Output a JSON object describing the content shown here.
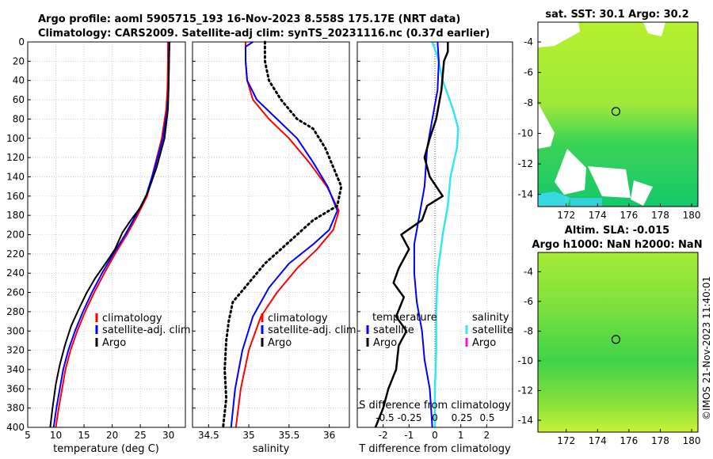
{
  "header": {
    "line1": "Argo profile: aoml 5905715_193 16-Nov-2023 8.558S 175.17E (NRT data)",
    "line2": "Climatology: CARS2009. Satellite-adj clim: synTS_20231116.nc (0.37d earlier)"
  },
  "side_stamp": "©IMOS 21-Nov-2023 11:40:01",
  "colors": {
    "climatology": "#ff0000",
    "satellite_adj": "#0000ff",
    "argo": "#000000",
    "sal_satellite": "#33e6f0",
    "sal_argo": "#ff00ff",
    "grid": "#b0b0b0"
  },
  "chart_data": [
    {
      "id": "temperature",
      "type": "line",
      "xlabel": "temperature (deg C)",
      "xlim": [
        5,
        33
      ],
      "xticks": [
        5,
        10,
        15,
        20,
        25,
        30
      ],
      "ylim": [
        0,
        400
      ],
      "yticks": [
        0,
        20,
        40,
        60,
        80,
        100,
        120,
        140,
        160,
        180,
        200,
        220,
        240,
        260,
        280,
        300,
        320,
        340,
        360,
        380,
        400
      ],
      "legend": [
        "climatology",
        "satellite-adj. clim",
        "Argo"
      ],
      "series": [
        {
          "name": "climatology",
          "color": "#ff0000",
          "width": 2,
          "dash": "",
          "points": [
            [
              29.9,
              0
            ],
            [
              29.9,
              20
            ],
            [
              29.8,
              50
            ],
            [
              29.6,
              70
            ],
            [
              28.8,
              100
            ],
            [
              27.5,
              130
            ],
            [
              26.2,
              160
            ],
            [
              24.5,
              180
            ],
            [
              22.6,
              200
            ],
            [
              20.5,
              220
            ],
            [
              18.6,
              240
            ],
            [
              16.8,
              260
            ],
            [
              15.2,
              280
            ],
            [
              13.8,
              300
            ],
            [
              12.6,
              320
            ],
            [
              11.7,
              340
            ],
            [
              11.1,
              360
            ],
            [
              10.5,
              380
            ],
            [
              10.0,
              400
            ]
          ]
        },
        {
          "name": "satellite-adj. clim",
          "color": "#0000ff",
          "width": 2,
          "dash": "",
          "points": [
            [
              30.1,
              0
            ],
            [
              30.1,
              20
            ],
            [
              30.0,
              50
            ],
            [
              29.8,
              70
            ],
            [
              29.0,
              100
            ],
            [
              27.6,
              130
            ],
            [
              26.0,
              160
            ],
            [
              24.2,
              180
            ],
            [
              22.3,
              200
            ],
            [
              20.2,
              220
            ],
            [
              18.2,
              240
            ],
            [
              16.4,
              260
            ],
            [
              14.8,
              280
            ],
            [
              13.4,
              300
            ],
            [
              12.2,
              320
            ],
            [
              11.3,
              340
            ],
            [
              10.7,
              360
            ],
            [
              10.1,
              380
            ],
            [
              9.6,
              400
            ]
          ]
        },
        {
          "name": "Argo",
          "color": "#000000",
          "width": 2,
          "dash": "",
          "points": [
            [
              30.2,
              0
            ],
            [
              30.1,
              20
            ],
            [
              30.0,
              50
            ],
            [
              29.9,
              70
            ],
            [
              29.3,
              100
            ],
            [
              27.9,
              130
            ],
            [
              26.4,
              155
            ],
            [
              25.0,
              172
            ],
            [
              23.3,
              185
            ],
            [
              21.8,
              198
            ],
            [
              20.5,
              215
            ],
            [
              18.8,
              230
            ],
            [
              17.0,
              245
            ],
            [
              15.5,
              260
            ],
            [
              14.0,
              278
            ],
            [
              12.7,
              295
            ],
            [
              11.6,
              315
            ],
            [
              10.7,
              335
            ],
            [
              10.0,
              355
            ],
            [
              9.4,
              380
            ],
            [
              9.0,
              400
            ]
          ]
        }
      ]
    },
    {
      "id": "salinity",
      "type": "line",
      "xlabel": "salinity",
      "xlim": [
        34.3,
        36.25
      ],
      "xticks": [
        34.5,
        35,
        35.5,
        36
      ],
      "xtick_labels": [
        "34.5",
        "35",
        "35.5",
        "36"
      ],
      "ylim": [
        0,
        400
      ],
      "legend": [
        "climatology",
        "satellite-adj. clim",
        "Argo"
      ],
      "series": [
        {
          "name": "climatology",
          "color": "#ff0000",
          "width": 2,
          "dash": "",
          "points": [
            [
              34.96,
              0
            ],
            [
              34.96,
              20
            ],
            [
              34.98,
              40
            ],
            [
              35.05,
              60
            ],
            [
              35.25,
              80
            ],
            [
              35.5,
              100
            ],
            [
              35.75,
              125
            ],
            [
              35.97,
              150
            ],
            [
              36.12,
              175
            ],
            [
              36.05,
              195
            ],
            [
              35.85,
              215
            ],
            [
              35.6,
              235
            ],
            [
              35.35,
              260
            ],
            [
              35.15,
              285
            ],
            [
              35.0,
              320
            ],
            [
              34.9,
              360
            ],
            [
              34.84,
              400
            ]
          ]
        },
        {
          "name": "satellite-adj. clim",
          "color": "#0000ff",
          "width": 2,
          "dash": "",
          "points": [
            [
              35.05,
              0
            ],
            [
              34.96,
              5
            ],
            [
              34.96,
              20
            ],
            [
              34.98,
              40
            ],
            [
              35.1,
              60
            ],
            [
              35.35,
              80
            ],
            [
              35.6,
              100
            ],
            [
              35.8,
              125
            ],
            [
              35.98,
              150
            ],
            [
              36.1,
              175
            ],
            [
              36.0,
              195
            ],
            [
              35.8,
              210
            ],
            [
              35.5,
              230
            ],
            [
              35.25,
              255
            ],
            [
              35.05,
              285
            ],
            [
              34.92,
              320
            ],
            [
              34.83,
              360
            ],
            [
              34.78,
              400
            ]
          ]
        },
        {
          "name": "Argo",
          "color": "#000000",
          "width": 3,
          "dash": "2 4",
          "points": [
            [
              35.2,
              0
            ],
            [
              35.2,
              20
            ],
            [
              35.25,
              40
            ],
            [
              35.4,
              60
            ],
            [
              35.6,
              80
            ],
            [
              35.8,
              90
            ],
            [
              35.95,
              110
            ],
            [
              36.05,
              130
            ],
            [
              36.15,
              150
            ],
            [
              36.1,
              170
            ],
            [
              35.8,
              185
            ],
            [
              35.6,
              200
            ],
            [
              35.4,
              215
            ],
            [
              35.2,
              230
            ],
            [
              35.0,
              250
            ],
            [
              34.8,
              270
            ],
            [
              34.75,
              290
            ],
            [
              34.72,
              310
            ],
            [
              34.7,
              340
            ],
            [
              34.72,
              370
            ],
            [
              34.68,
              400
            ]
          ]
        }
      ]
    },
    {
      "id": "difference",
      "type": "line",
      "xlabel": "T difference from climatology",
      "xlim": [
        -3,
        3
      ],
      "xticks": [
        -2,
        -1,
        0,
        1,
        2
      ],
      "ylim": [
        0,
        400
      ],
      "top_axis_title": "S difference from climatology",
      "top_tick_labels": [
        "-0.5",
        "-0.25",
        "0",
        "0.25",
        "0.5"
      ],
      "legend_temperature_title": "temperature",
      "legend_salinity_title": "salinity",
      "legend_temperature": [
        "satellite",
        "Argo"
      ],
      "legend_salinity": [
        "satellite",
        "Argo"
      ],
      "series": [
        {
          "name": "S satellite",
          "color": "#33e6f0",
          "width": 2.5,
          "dash": "",
          "points": [
            [
              -0.1,
              0
            ],
            [
              0.1,
              15
            ],
            [
              0.3,
              40
            ],
            [
              0.7,
              70
            ],
            [
              0.9,
              90
            ],
            [
              0.85,
              110
            ],
            [
              0.6,
              140
            ],
            [
              0.5,
              170
            ],
            [
              0.3,
              200
            ],
            [
              0.1,
              240
            ],
            [
              0.05,
              280
            ],
            [
              0.05,
              320
            ],
            [
              0.0,
              360
            ],
            [
              0.0,
              400
            ]
          ]
        },
        {
          "name": "T satellite",
          "color": "#0000ff",
          "width": 2,
          "dash": "",
          "points": [
            [
              0.1,
              0
            ],
            [
              0.15,
              20
            ],
            [
              0.1,
              50
            ],
            [
              -0.1,
              80
            ],
            [
              -0.3,
              110
            ],
            [
              -0.4,
              150
            ],
            [
              -0.6,
              180
            ],
            [
              -0.8,
              210
            ],
            [
              -0.8,
              240
            ],
            [
              -0.7,
              270
            ],
            [
              -0.5,
              300
            ],
            [
              -0.4,
              330
            ],
            [
              -0.2,
              360
            ],
            [
              -0.1,
              400
            ]
          ]
        },
        {
          "name": "T Argo",
          "color": "#000000",
          "width": 2.5,
          "dash": "",
          "points": [
            [
              0.5,
              0
            ],
            [
              0.5,
              10
            ],
            [
              0.35,
              20
            ],
            [
              0.25,
              50
            ],
            [
              0.05,
              80
            ],
            [
              -0.2,
              100
            ],
            [
              -0.4,
              120
            ],
            [
              -0.2,
              140
            ],
            [
              0.3,
              160
            ],
            [
              -0.3,
              170
            ],
            [
              -0.5,
              185
            ],
            [
              -1.3,
              200
            ],
            [
              -1.0,
              215
            ],
            [
              -1.4,
              235
            ],
            [
              -1.6,
              250
            ],
            [
              -1.2,
              265
            ],
            [
              -1.5,
              285
            ],
            [
              -1.1,
              300
            ],
            [
              -1.4,
              315
            ],
            [
              -1.5,
              340
            ],
            [
              -1.8,
              360
            ],
            [
              -2.0,
              380
            ],
            [
              -2.3,
              400
            ]
          ]
        }
      ]
    },
    {
      "id": "sst_map",
      "type": "heatmap",
      "title": "sat. SST: 30.1 Argo: 30.2",
      "xticks": [
        172,
        174,
        176,
        178,
        180
      ],
      "yticks": [
        -4,
        -6,
        -8,
        -10,
        -12,
        -14
      ],
      "xlim": [
        170.2,
        180.4
      ],
      "ylim": [
        -14.8,
        -2.7
      ],
      "marker": {
        "lon": 175.17,
        "lat": -8.558
      }
    },
    {
      "id": "sla_map",
      "type": "heatmap",
      "title_line1": "Altim. SLA: -0.015",
      "title_line2": "Argo h1000: NaN h2000: NaN",
      "xticks": [
        172,
        174,
        176,
        178,
        180
      ],
      "yticks": [
        -4,
        -6,
        -8,
        -10,
        -12,
        -14
      ],
      "xlim": [
        170.2,
        180.4
      ],
      "ylim": [
        -14.8,
        -2.7
      ],
      "marker": {
        "lon": 175.17,
        "lat": -8.558
      }
    }
  ]
}
